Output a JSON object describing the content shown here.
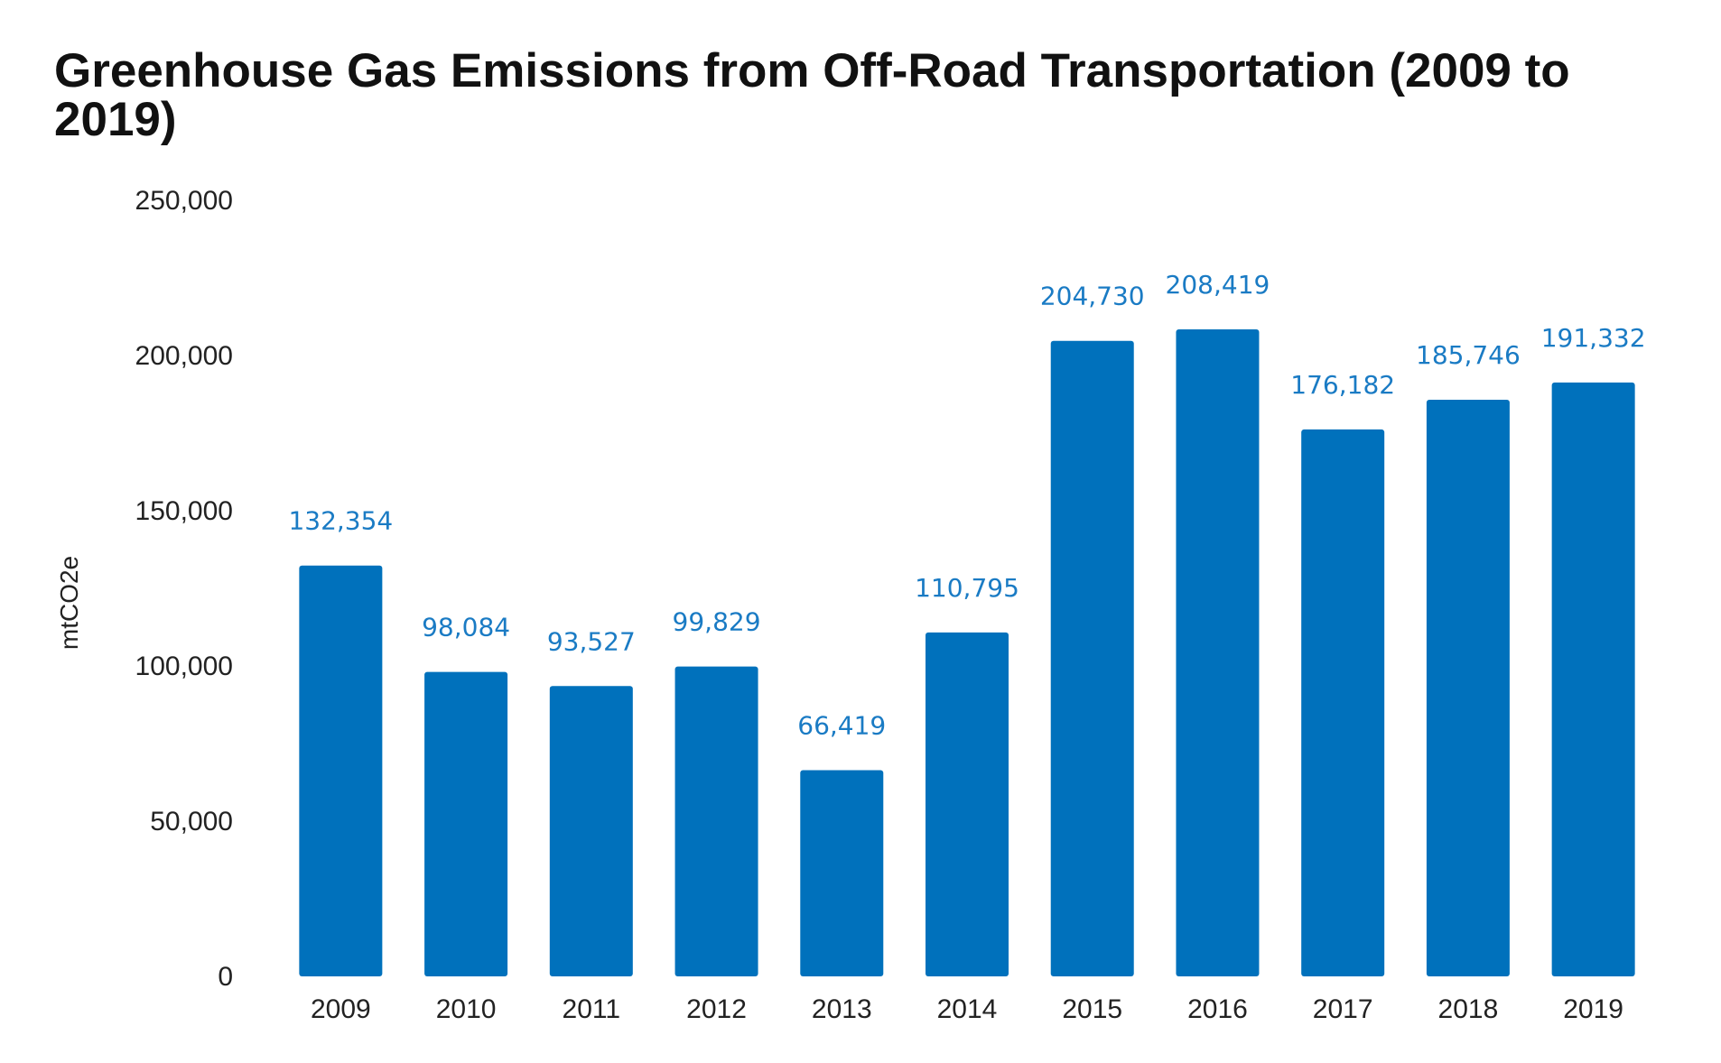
{
  "chart_data": {
    "type": "bar",
    "title": "Greenhouse Gas Emissions from Off-Road Transportation (2009 to 2019)",
    "xlabel": "",
    "ylabel": "mtCO2e",
    "categories": [
      "2009",
      "2010",
      "2011",
      "2012",
      "2013",
      "2014",
      "2015",
      "2016",
      "2017",
      "2018",
      "2019"
    ],
    "values": [
      132354,
      98084,
      93527,
      99829,
      66419,
      110795,
      204730,
      208419,
      176182,
      185746,
      191332
    ],
    "data_labels": [
      "132,354",
      "98,084",
      "93,527",
      "99,829",
      "66,419",
      "110,795",
      "204,730",
      "208,419",
      "176,182",
      "185,746",
      "191,332"
    ],
    "ylim": [
      0,
      250000
    ],
    "yticks": [
      0,
      50000,
      100000,
      150000,
      200000,
      250000
    ],
    "ytick_labels": [
      "0",
      "50,000",
      "100,000",
      "150,000",
      "200,000",
      "250,000"
    ],
    "grid": false,
    "legend": "none",
    "colors": {
      "bar": "#0071bc",
      "data_label": "#1a7bc4"
    }
  }
}
